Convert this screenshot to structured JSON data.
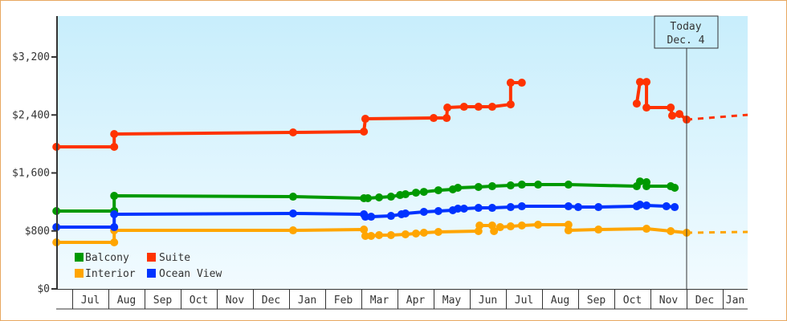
{
  "chart_data": {
    "type": "line",
    "title": "",
    "xlabel": "",
    "ylabel": "",
    "x_units": "months since Jul 1",
    "xlim": [
      -0.4,
      18.7
    ],
    "ylim": [
      0,
      3560
    ],
    "y_ticks": [
      0,
      800,
      1600,
      2400,
      3200
    ],
    "y_tick_labels": [
      "$0",
      "$800",
      "$1,600",
      "$2,400",
      "$3,200"
    ],
    "x_tick_labels": [
      "",
      "Jul",
      "Aug",
      "Sep",
      "Oct",
      "Nov",
      "Dec",
      "Jan",
      "Feb",
      "Mar",
      "Apr",
      "May",
      "Jun",
      "Jul",
      "Aug",
      "Sep",
      "Oct",
      "Nov",
      "Dec",
      "Jan"
    ],
    "grid": false,
    "legend_placement": "bottom-left",
    "today": {
      "line1": "Today",
      "line2": "Dec. 4",
      "x": 17.0
    },
    "series": [
      {
        "name": "Balcony",
        "color": "#009900",
        "segments": [
          [
            [
              -0.44,
              1074
            ],
            [
              1.16,
              1074
            ],
            [
              1.16,
              1284
            ],
            [
              6.11,
              1273
            ],
            [
              8.07,
              1251
            ],
            [
              8.18,
              1251
            ],
            [
              8.49,
              1262
            ],
            [
              8.82,
              1273
            ],
            [
              9.07,
              1295
            ],
            [
              9.22,
              1306
            ],
            [
              9.51,
              1328
            ],
            [
              9.73,
              1339
            ],
            [
              10.13,
              1361
            ],
            [
              10.53,
              1373
            ],
            [
              10.67,
              1395
            ],
            [
              11.24,
              1406
            ],
            [
              11.62,
              1417
            ],
            [
              12.13,
              1428
            ],
            [
              12.44,
              1439
            ],
            [
              12.89,
              1439
            ],
            [
              13.73,
              1439
            ],
            [
              15.62,
              1417
            ],
            [
              15.71,
              1483
            ],
            [
              15.89,
              1472
            ],
            [
              15.89,
              1417
            ],
            [
              16.56,
              1417
            ],
            [
              16.67,
              1395
            ]
          ]
        ],
        "forecast": []
      },
      {
        "name": "Suite",
        "color": "#ff3300",
        "segments": [
          [
            [
              -0.44,
              1960
            ],
            [
              1.16,
              1960
            ],
            [
              1.16,
              2137
            ],
            [
              6.11,
              2159
            ],
            [
              8.07,
              2170
            ],
            [
              8.11,
              2347
            ],
            [
              10.0,
              2358
            ],
            [
              10.36,
              2358
            ],
            [
              10.38,
              2502
            ],
            [
              10.84,
              2513
            ],
            [
              11.24,
              2513
            ],
            [
              11.62,
              2513
            ],
            [
              12.13,
              2546
            ],
            [
              12.13,
              2845
            ],
            [
              12.44,
              2845
            ]
          ],
          [
            [
              15.62,
              2557
            ],
            [
              15.71,
              2856
            ],
            [
              15.89,
              2856
            ],
            [
              15.89,
              2502
            ],
            [
              16.56,
              2502
            ],
            [
              16.6,
              2391
            ],
            [
              16.8,
              2413
            ],
            [
              17.0,
              2336
            ]
          ]
        ],
        "forecast": [
          [
            17.0,
            2336
          ],
          [
            18.69,
            2402
          ]
        ]
      },
      {
        "name": "Interior",
        "color": "#ffa500",
        "segments": [
          [
            [
              -0.44,
              642
            ],
            [
              1.16,
              642
            ],
            [
              1.16,
              808
            ],
            [
              6.11,
              808
            ],
            [
              8.07,
              819
            ],
            [
              8.11,
              731
            ],
            [
              8.27,
              731
            ],
            [
              8.49,
              742
            ],
            [
              8.82,
              742
            ],
            [
              9.22,
              753
            ],
            [
              9.51,
              764
            ],
            [
              9.73,
              775
            ],
            [
              10.13,
              786
            ],
            [
              11.24,
              797
            ],
            [
              11.27,
              875
            ],
            [
              11.62,
              875
            ],
            [
              11.67,
              797
            ],
            [
              11.84,
              852
            ],
            [
              12.13,
              863
            ],
            [
              12.44,
              875
            ],
            [
              12.89,
              886
            ],
            [
              13.73,
              886
            ],
            [
              13.73,
              808
            ],
            [
              14.56,
              819
            ],
            [
              15.89,
              830
            ],
            [
              16.56,
              797
            ],
            [
              17.0,
              775
            ]
          ]
        ],
        "forecast": [
          [
            17.0,
            775
          ],
          [
            18.69,
            786
          ]
        ]
      },
      {
        "name": "Ocean View",
        "color": "#0033ff",
        "segments": [
          [
            [
              -0.44,
              852
            ],
            [
              1.16,
              852
            ],
            [
              1.16,
              1030
            ],
            [
              6.11,
              1041
            ],
            [
              8.07,
              1030
            ],
            [
              8.11,
              996
            ],
            [
              8.27,
              996
            ],
            [
              8.82,
              1007
            ],
            [
              9.11,
              1030
            ],
            [
              9.22,
              1041
            ],
            [
              9.73,
              1063
            ],
            [
              10.13,
              1074
            ],
            [
              10.53,
              1085
            ],
            [
              10.67,
              1107
            ],
            [
              10.84,
              1107
            ],
            [
              11.24,
              1118
            ],
            [
              11.62,
              1118
            ],
            [
              12.13,
              1129
            ],
            [
              12.44,
              1140
            ],
            [
              13.73,
              1140
            ],
            [
              14.0,
              1129
            ],
            [
              14.56,
              1129
            ],
            [
              15.62,
              1140
            ],
            [
              15.71,
              1162
            ],
            [
              15.89,
              1151
            ],
            [
              16.44,
              1140
            ],
            [
              16.67,
              1129
            ]
          ]
        ],
        "forecast": []
      }
    ]
  }
}
